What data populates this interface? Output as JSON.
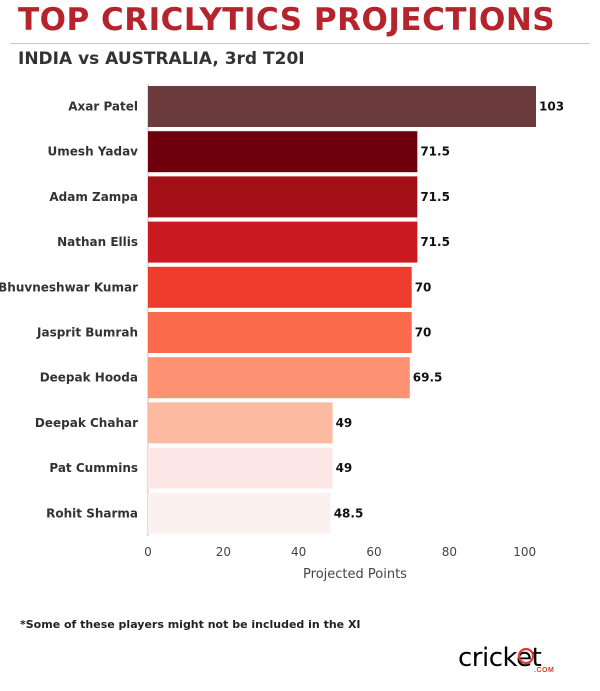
{
  "header": {
    "title": "TOP CRICLYTICS PROJECTIONS",
    "subtitle": "INDIA vs AUSTRALIA, 3rd T20I"
  },
  "footnote": "*Some of these players might not be included in the XI",
  "logo": {
    "text": "cricket",
    "sub": ".COM",
    "accent_color": "#e03a2f"
  },
  "chart_data": {
    "type": "bar",
    "orientation": "horizontal",
    "categories": [
      "Axar Patel",
      "Umesh Yadav",
      "Adam Zampa",
      "Nathan Ellis",
      "Bhuvneshwar Kumar",
      "Jasprit Bumrah",
      "Deepak Hooda",
      "Deepak Chahar",
      "Pat Cummins",
      "Rohit Sharma"
    ],
    "values": [
      103,
      71.5,
      71.5,
      71.5,
      70,
      70,
      69.5,
      49,
      49,
      48.5
    ],
    "value_labels": [
      "103",
      "71.5",
      "71.5",
      "71.5",
      "70",
      "70",
      "69.5",
      "49",
      "49",
      "48.5"
    ],
    "colors": [
      "#6b3a3d",
      "#6e000e",
      "#a40f18",
      "#cb1a20",
      "#ef3b2c",
      "#fb6a4a",
      "#fc9272",
      "#fcbba1",
      "#fde6e6",
      "#fdf1ef"
    ],
    "xlabel": "Projected Points",
    "xlim": [
      0,
      115
    ],
    "xticks": [
      0,
      20,
      40,
      60,
      80,
      100
    ],
    "xtick_labels": [
      "0",
      "20",
      "40",
      "60",
      "80",
      "100"
    ],
    "grid": false
  }
}
